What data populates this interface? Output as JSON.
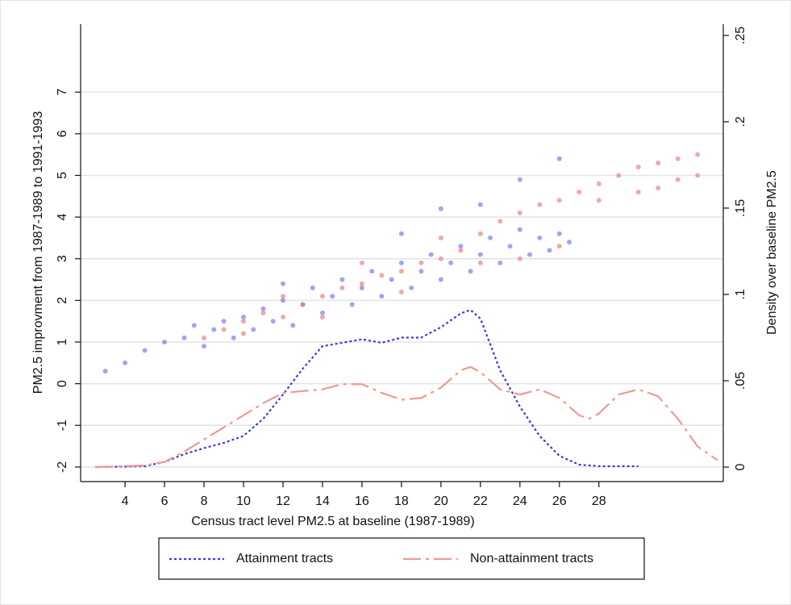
{
  "chart_data": {
    "type": "scatter",
    "x_label": "Census tract level PM2.5 at baseline (1987-1989)",
    "y_label": "PM2.5 improvment from 1987-1989 to 1991-1993",
    "y2_label": "Density over baseline PM2.5",
    "xlim": [
      1.75,
      34.3
    ],
    "xticks": [
      4,
      6,
      8,
      10,
      12,
      14,
      16,
      18,
      20,
      22,
      24,
      26,
      28
    ],
    "ylim": [
      -2.35,
      8.63
    ],
    "yticks": [
      -2,
      -1,
      0,
      1,
      2,
      3,
      4,
      5,
      6,
      7
    ],
    "y2lim": [
      -0.0084,
      0.2565
    ],
    "y2ticks": [
      {
        "value": 0,
        "label": "0"
      },
      {
        "value": 0.05,
        "label": ".05"
      },
      {
        "value": 0.1,
        "label": ".1"
      },
      {
        "value": 0.15,
        "label": ".15"
      },
      {
        "value": 0.2,
        "label": ".2"
      },
      {
        "value": 0.25,
        "label": ".25"
      }
    ],
    "grid": true,
    "legend": "bottom",
    "series": [
      {
        "type": "scatter",
        "color": "#7272f2",
        "x": [
          3,
          4,
          5,
          6,
          7,
          7.5,
          8,
          8.5,
          9,
          9.5,
          10,
          10.5,
          11,
          11.5,
          12,
          12.5,
          13,
          13.5,
          14,
          14.5,
          15,
          15.5,
          16,
          16.5,
          17,
          17.5,
          18,
          18.5,
          19,
          19.5,
          20,
          20.5,
          21,
          21.5,
          22,
          22.5,
          23,
          23.5,
          24,
          24.5,
          25,
          25.5,
          26,
          26.5,
          22,
          24,
          26,
          18,
          20,
          12
        ],
        "values": [
          0.3,
          0.5,
          0.8,
          1.0,
          1.1,
          1.4,
          0.9,
          1.3,
          1.5,
          1.1,
          1.6,
          1.3,
          1.8,
          1.5,
          2.0,
          1.4,
          1.9,
          2.3,
          1.7,
          2.1,
          2.5,
          1.9,
          2.3,
          2.7,
          2.1,
          2.5,
          2.9,
          2.3,
          2.7,
          3.1,
          2.5,
          2.9,
          3.3,
          2.7,
          3.1,
          3.5,
          2.9,
          3.3,
          3.7,
          3.1,
          3.5,
          3.2,
          3.6,
          3.4,
          4.3,
          4.9,
          5.4,
          3.6,
          4.2,
          2.4
        ]
      },
      {
        "type": "scatter",
        "color": "#f07878",
        "x": [
          8,
          9,
          10,
          11,
          12,
          13,
          14,
          15,
          16,
          17,
          18,
          19,
          20,
          21,
          22,
          23,
          24,
          25,
          26,
          27,
          28,
          29,
          30,
          31,
          32,
          33,
          30,
          32,
          16,
          20,
          12,
          22,
          10,
          24,
          26,
          18,
          28,
          31,
          33,
          14
        ],
        "values": [
          1.1,
          1.3,
          1.5,
          1.7,
          1.6,
          1.9,
          2.1,
          2.3,
          2.4,
          2.6,
          2.7,
          2.9,
          3.0,
          3.2,
          3.6,
          3.9,
          4.1,
          4.3,
          4.4,
          4.6,
          4.8,
          5.0,
          5.2,
          5.3,
          5.4,
          5.5,
          4.6,
          4.9,
          2.9,
          3.5,
          2.1,
          2.9,
          1.2,
          3.0,
          3.3,
          2.2,
          4.4,
          4.7,
          5.0,
          1.6
        ]
      },
      {
        "type": "line",
        "name": "Attainment tracts",
        "color": "#3a3ae6",
        "dash": "3 3",
        "axis": "y2",
        "x": [
          2.5,
          5,
          6,
          7,
          8,
          9,
          10,
          11,
          12,
          13,
          14,
          15,
          16,
          17,
          18,
          19,
          20,
          21,
          21.5,
          22,
          23,
          24,
          25,
          26,
          27,
          28,
          30
        ],
        "values": [
          0,
          0.0005,
          0.003,
          0.0075,
          0.011,
          0.014,
          0.018,
          0.028,
          0.042,
          0.057,
          0.07,
          0.072,
          0.074,
          0.072,
          0.075,
          0.075,
          0.081,
          0.089,
          0.091,
          0.086,
          0.056,
          0.035,
          0.018,
          0.0065,
          0.0014,
          0.0005,
          0.0005
        ]
      },
      {
        "type": "line",
        "name": "Non-attainment tracts",
        "color": "#ee9a92",
        "dash": "22 6 4 6",
        "axis": "y2",
        "x": [
          2.5,
          4,
          5,
          6,
          7,
          8,
          9,
          10,
          11,
          12,
          13,
          14,
          15,
          16,
          17,
          18,
          19,
          20,
          21,
          21.5,
          22,
          23,
          24,
          25,
          26,
          27,
          27.5,
          28,
          29,
          30,
          31,
          32,
          33,
          34
        ],
        "values": [
          0,
          0.0005,
          0.001,
          0.003,
          0.009,
          0.016,
          0.023,
          0.03,
          0.037,
          0.043,
          0.044,
          0.045,
          0.048,
          0.048,
          0.043,
          0.039,
          0.04,
          0.046,
          0.056,
          0.058,
          0.055,
          0.045,
          0.042,
          0.045,
          0.04,
          0.03,
          0.028,
          0.031,
          0.042,
          0.045,
          0.041,
          0.028,
          0.012,
          0.004
        ]
      }
    ]
  }
}
